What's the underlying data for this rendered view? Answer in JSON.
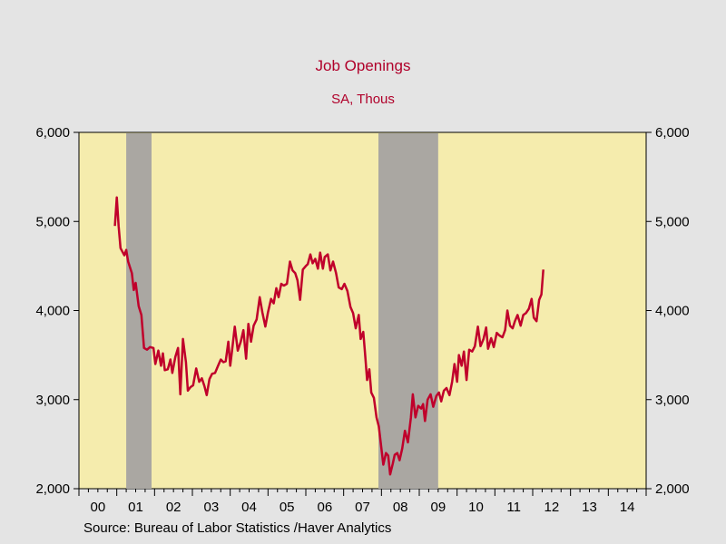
{
  "chart_data": {
    "type": "line",
    "title": "Job Openings",
    "subtitle": "SA, Thous",
    "source": "Source:  Bureau of Labor Statistics /Haver Analytics",
    "ylim": [
      2000,
      6000
    ],
    "y_ticks": [
      2000,
      3000,
      4000,
      5000,
      6000
    ],
    "y_tick_labels": [
      "2,000",
      "3,000",
      "4,000",
      "5,000",
      "6,000"
    ],
    "xlim": [
      2000.0,
      2015.0
    ],
    "x_tick_labels": [
      "00",
      "01",
      "02",
      "03",
      "04",
      "05",
      "06",
      "07",
      "08",
      "09",
      "10",
      "11",
      "12",
      "13",
      "14"
    ],
    "recessions": [
      [
        2001.25,
        2001.92
      ],
      [
        2007.92,
        2009.5
      ]
    ],
    "colors": {
      "background": "#e4e4e4",
      "plot_bg": "#f5ecad",
      "line": "#c0002b",
      "recession": "#aaa7a2",
      "title": "#b0002a"
    },
    "series": [
      {
        "values": [
          [
            2000.95,
            4950
          ],
          [
            2001.0,
            5270
          ],
          [
            2001.05,
            4950
          ],
          [
            2001.1,
            4700
          ],
          [
            2001.2,
            4620
          ],
          [
            2001.25,
            4680
          ],
          [
            2001.3,
            4550
          ],
          [
            2001.4,
            4420
          ],
          [
            2001.45,
            4230
          ],
          [
            2001.5,
            4310
          ],
          [
            2001.58,
            4050
          ],
          [
            2001.65,
            3950
          ],
          [
            2001.72,
            3580
          ],
          [
            2001.8,
            3560
          ],
          [
            2001.88,
            3590
          ],
          [
            2001.97,
            3580
          ],
          [
            2002.02,
            3400
          ],
          [
            2002.1,
            3550
          ],
          [
            2002.17,
            3380
          ],
          [
            2002.22,
            3520
          ],
          [
            2002.27,
            3330
          ],
          [
            2002.35,
            3340
          ],
          [
            2002.42,
            3450
          ],
          [
            2002.47,
            3300
          ],
          [
            2002.55,
            3480
          ],
          [
            2002.62,
            3580
          ],
          [
            2002.68,
            3060
          ],
          [
            2002.75,
            3680
          ],
          [
            2002.83,
            3420
          ],
          [
            2002.88,
            3100
          ],
          [
            2002.95,
            3140
          ],
          [
            2003.02,
            3160
          ],
          [
            2003.1,
            3350
          ],
          [
            2003.18,
            3200
          ],
          [
            2003.25,
            3240
          ],
          [
            2003.32,
            3150
          ],
          [
            2003.38,
            3050
          ],
          [
            2003.45,
            3230
          ],
          [
            2003.52,
            3290
          ],
          [
            2003.6,
            3300
          ],
          [
            2003.68,
            3380
          ],
          [
            2003.75,
            3450
          ],
          [
            2003.82,
            3420
          ],
          [
            2003.88,
            3430
          ],
          [
            2003.95,
            3650
          ],
          [
            2004.0,
            3380
          ],
          [
            2004.05,
            3550
          ],
          [
            2004.12,
            3820
          ],
          [
            2004.2,
            3550
          ],
          [
            2004.28,
            3650
          ],
          [
            2004.35,
            3780
          ],
          [
            2004.42,
            3460
          ],
          [
            2004.48,
            3850
          ],
          [
            2004.55,
            3650
          ],
          [
            2004.62,
            3830
          ],
          [
            2004.7,
            3900
          ],
          [
            2004.78,
            4150
          ],
          [
            2004.85,
            3980
          ],
          [
            2004.93,
            3820
          ],
          [
            2005.0,
            3980
          ],
          [
            2005.08,
            4130
          ],
          [
            2005.15,
            4080
          ],
          [
            2005.22,
            4250
          ],
          [
            2005.28,
            4150
          ],
          [
            2005.35,
            4300
          ],
          [
            2005.42,
            4280
          ],
          [
            2005.5,
            4300
          ],
          [
            2005.58,
            4550
          ],
          [
            2005.65,
            4450
          ],
          [
            2005.72,
            4420
          ],
          [
            2005.78,
            4340
          ],
          [
            2005.85,
            4120
          ],
          [
            2005.92,
            4460
          ],
          [
            2006.0,
            4500
          ],
          [
            2006.05,
            4520
          ],
          [
            2006.12,
            4630
          ],
          [
            2006.18,
            4530
          ],
          [
            2006.25,
            4580
          ],
          [
            2006.32,
            4470
          ],
          [
            2006.38,
            4650
          ],
          [
            2006.45,
            4470
          ],
          [
            2006.5,
            4600
          ],
          [
            2006.58,
            4630
          ],
          [
            2006.65,
            4450
          ],
          [
            2006.72,
            4550
          ],
          [
            2006.8,
            4420
          ],
          [
            2006.87,
            4260
          ],
          [
            2006.95,
            4240
          ],
          [
            2007.02,
            4300
          ],
          [
            2007.1,
            4220
          ],
          [
            2007.18,
            4040
          ],
          [
            2007.25,
            3970
          ],
          [
            2007.32,
            3800
          ],
          [
            2007.4,
            3950
          ],
          [
            2007.45,
            3680
          ],
          [
            2007.52,
            3760
          ],
          [
            2007.57,
            3500
          ],
          [
            2007.62,
            3220
          ],
          [
            2007.68,
            3340
          ],
          [
            2007.73,
            3080
          ],
          [
            2007.8,
            3020
          ],
          [
            2007.87,
            2800
          ],
          [
            2007.93,
            2700
          ],
          [
            2008.0,
            2450
          ],
          [
            2008.05,
            2270
          ],
          [
            2008.12,
            2400
          ],
          [
            2008.18,
            2370
          ],
          [
            2008.23,
            2160
          ],
          [
            2008.3,
            2280
          ],
          [
            2008.35,
            2380
          ],
          [
            2008.42,
            2400
          ],
          [
            2008.48,
            2320
          ],
          [
            2008.55,
            2450
          ],
          [
            2008.62,
            2650
          ],
          [
            2008.7,
            2520
          ],
          [
            2008.78,
            2800
          ],
          [
            2008.83,
            3060
          ],
          [
            2008.9,
            2800
          ],
          [
            2008.97,
            2930
          ],
          [
            2009.05,
            2900
          ],
          [
            2009.1,
            2950
          ],
          [
            2009.15,
            2760
          ],
          [
            2009.22,
            3000
          ],
          [
            2009.3,
            3060
          ],
          [
            2009.37,
            2920
          ],
          [
            2009.45,
            3040
          ],
          [
            2009.52,
            3080
          ],
          [
            2009.58,
            2980
          ],
          [
            2009.65,
            3100
          ],
          [
            2009.72,
            3130
          ],
          [
            2009.8,
            3050
          ],
          [
            2009.87,
            3200
          ],
          [
            2009.93,
            3400
          ],
          [
            2010.0,
            3200
          ],
          [
            2010.05,
            3500
          ],
          [
            2010.12,
            3380
          ],
          [
            2010.18,
            3540
          ],
          [
            2010.25,
            3220
          ],
          [
            2010.32,
            3560
          ],
          [
            2010.4,
            3540
          ],
          [
            2010.47,
            3600
          ],
          [
            2010.55,
            3820
          ],
          [
            2010.62,
            3600
          ],
          [
            2010.7,
            3680
          ],
          [
            2010.77,
            3810
          ],
          [
            2010.82,
            3570
          ],
          [
            2010.9,
            3690
          ],
          [
            2010.97,
            3590
          ],
          [
            2011.05,
            3750
          ],
          [
            2011.12,
            3720
          ],
          [
            2011.2,
            3700
          ],
          [
            2011.27,
            3780
          ],
          [
            2011.33,
            4000
          ],
          [
            2011.4,
            3830
          ],
          [
            2011.47,
            3800
          ],
          [
            2011.53,
            3880
          ],
          [
            2011.6,
            3950
          ],
          [
            2011.68,
            3830
          ],
          [
            2011.75,
            3950
          ],
          [
            2011.82,
            3970
          ],
          [
            2011.9,
            4020
          ],
          [
            2011.97,
            4130
          ],
          [
            2012.03,
            3920
          ],
          [
            2012.1,
            3880
          ],
          [
            2012.17,
            4120
          ],
          [
            2012.23,
            4180
          ],
          [
            2012.28,
            4460
          ]
        ]
      }
    ]
  }
}
